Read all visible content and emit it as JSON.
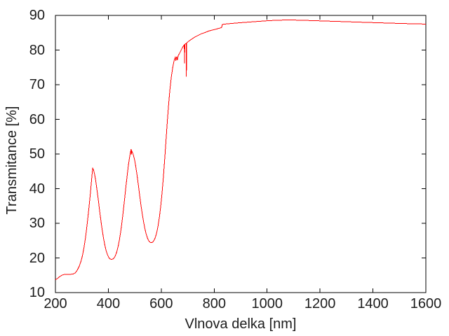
{
  "window": {
    "background": "#ffffff"
  },
  "chart_data": {
    "type": "line",
    "title": "",
    "xlabel": "Vlnova delka [nm]",
    "ylabel": "Transmitance [%]",
    "xlim": [
      200,
      1600
    ],
    "ylim": [
      10,
      90
    ],
    "xticks": [
      200,
      400,
      600,
      800,
      1000,
      1200,
      1400,
      1600
    ],
    "yticks": [
      10,
      20,
      30,
      40,
      50,
      60,
      70,
      80,
      90
    ],
    "grid": false,
    "legend_position": "none",
    "axis_color": "#000000",
    "tick_label_color": "#1c1c1c",
    "series": [
      {
        "name": "transmittance",
        "color": "#ff0000",
        "points": [
          [
            200,
            13.7
          ],
          [
            208,
            14.1
          ],
          [
            216,
            14.6
          ],
          [
            224,
            15.0
          ],
          [
            232,
            15.2
          ],
          [
            240,
            15.3
          ],
          [
            250,
            15.3
          ],
          [
            260,
            15.3
          ],
          [
            268,
            15.4
          ],
          [
            275,
            15.7
          ],
          [
            282,
            16.4
          ],
          [
            290,
            17.6
          ],
          [
            296,
            18.9
          ],
          [
            302,
            20.6
          ],
          [
            308,
            23.0
          ],
          [
            314,
            26.0
          ],
          [
            320,
            29.8
          ],
          [
            326,
            34.0
          ],
          [
            332,
            38.5
          ],
          [
            336,
            42.0
          ],
          [
            339,
            44.5
          ],
          [
            341,
            45.9
          ],
          [
            344,
            45.4
          ],
          [
            348,
            44.2
          ],
          [
            352,
            42.4
          ],
          [
            357,
            39.7
          ],
          [
            362,
            36.8
          ],
          [
            367,
            33.7
          ],
          [
            372,
            30.7
          ],
          [
            377,
            28.0
          ],
          [
            382,
            25.6
          ],
          [
            387,
            23.6
          ],
          [
            392,
            22.0
          ],
          [
            397,
            20.9
          ],
          [
            402,
            20.1
          ],
          [
            407,
            19.7
          ],
          [
            412,
            19.6
          ],
          [
            417,
            19.7
          ],
          [
            422,
            20.0
          ],
          [
            427,
            20.7
          ],
          [
            432,
            21.8
          ],
          [
            437,
            23.3
          ],
          [
            442,
            25.3
          ],
          [
            447,
            27.7
          ],
          [
            452,
            30.6
          ],
          [
            457,
            33.9
          ],
          [
            462,
            37.4
          ],
          [
            467,
            41.0
          ],
          [
            472,
            44.3
          ],
          [
            476,
            46.9
          ],
          [
            480,
            48.9
          ],
          [
            483,
            50.3
          ],
          [
            485,
            51.0
          ],
          [
            486,
            51.4
          ],
          [
            487,
            49.9
          ],
          [
            489,
            50.8
          ],
          [
            492,
            50.3
          ],
          [
            495,
            49.6
          ],
          [
            499,
            48.4
          ],
          [
            503,
            46.7
          ],
          [
            508,
            44.2
          ],
          [
            513,
            41.3
          ],
          [
            518,
            38.3
          ],
          [
            523,
            35.4
          ],
          [
            528,
            32.8
          ],
          [
            533,
            30.5
          ],
          [
            538,
            28.5
          ],
          [
            543,
            26.9
          ],
          [
            548,
            25.7
          ],
          [
            553,
            24.9
          ],
          [
            558,
            24.5
          ],
          [
            563,
            24.4
          ],
          [
            568,
            24.6
          ],
          [
            573,
            25.1
          ],
          [
            578,
            26.0
          ],
          [
            583,
            27.4
          ],
          [
            588,
            29.3
          ],
          [
            593,
            31.8
          ],
          [
            598,
            34.9
          ],
          [
            603,
            38.8
          ],
          [
            608,
            43.3
          ],
          [
            613,
            48.5
          ],
          [
            618,
            54.0
          ],
          [
            623,
            59.5
          ],
          [
            628,
            64.5
          ],
          [
            633,
            68.8
          ],
          [
            638,
            72.2
          ],
          [
            643,
            74.8
          ],
          [
            647,
            76.4
          ],
          [
            650,
            77.3
          ],
          [
            653,
            77.9
          ],
          [
            655,
            76.9
          ],
          [
            658,
            78.1
          ],
          [
            661,
            77.1
          ],
          [
            664,
            78.4
          ],
          [
            668,
            78.9
          ],
          [
            672,
            79.5
          ],
          [
            676,
            80.1
          ],
          [
            680,
            80.7
          ],
          [
            684,
            81.2
          ],
          [
            687,
            81.5
          ],
          [
            688,
            76.2
          ],
          [
            689,
            81.6
          ],
          [
            692,
            81.8
          ],
          [
            694,
            81.9
          ],
          [
            695,
            72.3
          ],
          [
            696,
            82.0
          ],
          [
            700,
            82.3
          ],
          [
            706,
            82.7
          ],
          [
            712,
            83.0
          ],
          [
            720,
            83.4
          ],
          [
            728,
            83.8
          ],
          [
            736,
            84.1
          ],
          [
            744,
            84.4
          ],
          [
            752,
            84.7
          ],
          [
            760,
            84.9
          ],
          [
            770,
            85.2
          ],
          [
            780,
            85.5
          ],
          [
            790,
            85.7
          ],
          [
            800,
            85.9
          ],
          [
            810,
            86.1
          ],
          [
            820,
            86.3
          ],
          [
            828,
            86.5
          ],
          [
            831,
            87.4
          ],
          [
            840,
            87.5
          ],
          [
            855,
            87.6
          ],
          [
            870,
            87.7
          ],
          [
            885,
            87.8
          ],
          [
            900,
            87.9
          ],
          [
            918,
            88.0
          ],
          [
            936,
            88.1
          ],
          [
            954,
            88.2
          ],
          [
            972,
            88.3
          ],
          [
            990,
            88.4
          ],
          [
            1010,
            88.5
          ],
          [
            1035,
            88.6
          ],
          [
            1065,
            88.65
          ],
          [
            1100,
            88.65
          ],
          [
            1135,
            88.6
          ],
          [
            1170,
            88.5
          ],
          [
            1210,
            88.4
          ],
          [
            1250,
            88.3
          ],
          [
            1290,
            88.2
          ],
          [
            1330,
            88.1
          ],
          [
            1370,
            88.0
          ],
          [
            1410,
            87.9
          ],
          [
            1450,
            87.8
          ],
          [
            1495,
            87.7
          ],
          [
            1540,
            87.6
          ],
          [
            1600,
            87.5
          ]
        ]
      }
    ]
  }
}
